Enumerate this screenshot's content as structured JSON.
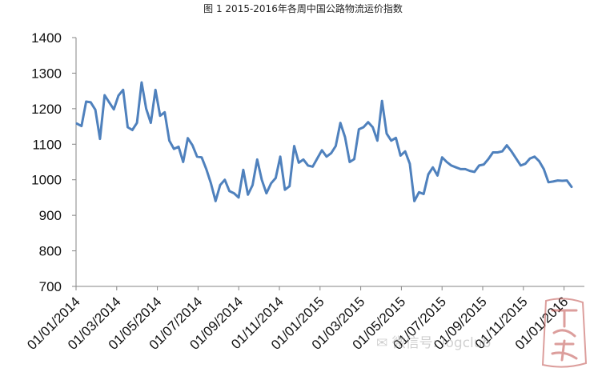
{
  "chart_data": {
    "type": "line",
    "title": "图 1 2015-2016年各周中国公路物流运价指数",
    "xlabel": "",
    "ylabel": "",
    "ylim": [
      700,
      1400
    ],
    "yticks": [
      "700",
      "800",
      "900",
      "1000",
      "1100",
      "1200",
      "1300",
      "1400"
    ],
    "xticks": [
      "01/01/2014",
      "01/03/2014",
      "01/05/2014",
      "01/07/2014",
      "01/09/2014",
      "01/11/2014",
      "01/01/2015",
      "01/03/2015",
      "01/05/2015",
      "01/07/2015",
      "01/09/2015",
      "01/11/2015",
      "01/01/2016"
    ],
    "grid": false,
    "legend": "none",
    "line_color": "#4F81BD",
    "series": [
      {
        "values": [
          1158,
          1151,
          1220,
          1218,
          1197,
          1115,
          1238,
          1218,
          1198,
          1237,
          1253,
          1148,
          1140,
          1160,
          1274,
          1200,
          1160,
          1253,
          1180,
          1190,
          1110,
          1087,
          1093,
          1050,
          1117,
          1097,
          1065,
          1063,
          1030,
          990,
          940,
          985,
          1000,
          968,
          962,
          950,
          1028,
          958,
          985,
          1057,
          1000,
          962,
          990,
          1005,
          1065,
          972,
          982,
          1095,
          1048,
          1057,
          1040,
          1037,
          1060,
          1083,
          1065,
          1075,
          1095,
          1160,
          1120,
          1050,
          1058,
          1142,
          1148,
          1162,
          1148,
          1110,
          1222,
          1130,
          1110,
          1118,
          1068,
          1080,
          1045,
          940,
          965,
          960,
          1015,
          1035,
          1012,
          1063,
          1050,
          1040,
          1035,
          1030,
          1030,
          1025,
          1022,
          1040,
          1043,
          1058,
          1077,
          1077,
          1080,
          1097,
          1080,
          1060,
          1040,
          1045,
          1060,
          1065,
          1052,
          1030,
          993,
          995,
          998,
          997,
          998,
          980
        ]
      }
    ]
  },
  "watermark": {
    "text": "微信号: logclub",
    "seal_text": "订阅物流"
  }
}
